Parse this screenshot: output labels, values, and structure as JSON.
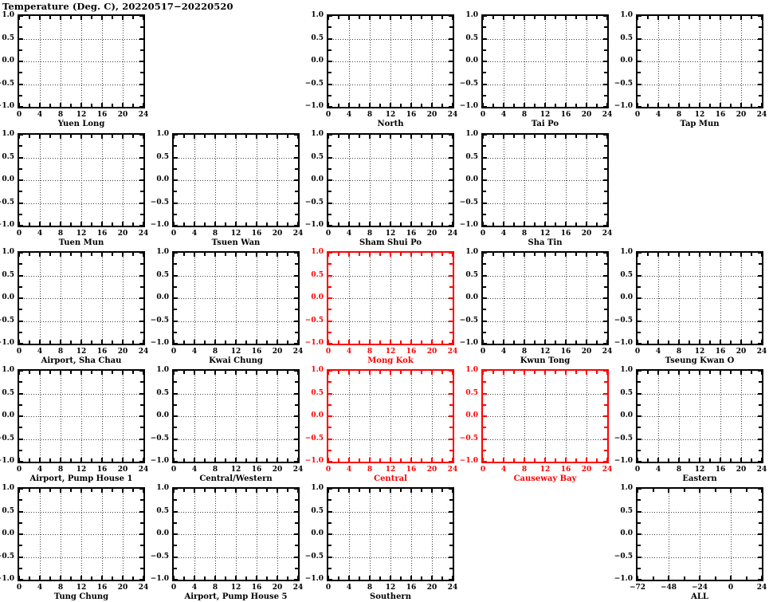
{
  "colors": {
    "axis_black": "#000000",
    "axis_red": "#ff0000",
    "grid": "#3f3f3f",
    "background": "#ffffff"
  },
  "chart_data": {
    "type": "line",
    "title": "Temperature (Deg. C), 20220517−20220520",
    "layout": {
      "rows": 5,
      "cols": 5,
      "grid_on": true,
      "legend": "none",
      "note": "5x5 small-multiples grid of empty axes; no data series plotted in any panel",
      "empty_cells": [
        {
          "row": 1,
          "col": 2
        },
        {
          "row": 2,
          "col": 5
        },
        {
          "row": 5,
          "col": 4
        }
      ]
    },
    "default_axes": {
      "xlim": [
        0,
        24
      ],
      "xticks": [
        0,
        4,
        8,
        12,
        16,
        20,
        24
      ],
      "xtick_labels": [
        "0",
        "4",
        "8",
        "12",
        "16",
        "20",
        "24"
      ],
      "xticks_minor": [
        2,
        6,
        10,
        14,
        18,
        22
      ],
      "x_gridlines": [
        4,
        8,
        12,
        16,
        20
      ],
      "ylim": [
        -1.0,
        1.0
      ],
      "yticks": [
        1.0,
        0.5,
        0.0,
        -0.5,
        -1.0
      ],
      "ytick_labels": [
        "1.0",
        "0.5",
        "0.0",
        "−0.5",
        "−1.0"
      ],
      "yticks_minor": [
        0.75,
        0.25,
        -0.25,
        -0.75
      ],
      "y_gridlines": [
        0.5,
        0.0,
        -0.5
      ]
    },
    "all_panel_axes": {
      "xlim": [
        -72,
        24
      ],
      "xticks": [
        -72,
        -48,
        -24,
        0,
        24
      ],
      "xtick_labels": [
        "−72",
        "−48",
        "−24",
        "0",
        "24"
      ],
      "xticks_minor": [
        -60,
        -36,
        -12,
        12
      ],
      "x_gridlines": [
        -48,
        -24,
        0
      ],
      "ylim": [
        -1.0,
        1.0
      ],
      "yticks": [
        1.0,
        0.5,
        0.0,
        -0.5,
        -1.0
      ],
      "ytick_labels": [
        "1.0",
        "0.5",
        "0.0",
        "−0.5",
        "−1.0"
      ],
      "yticks_minor": [
        0.75,
        0.25,
        -0.25,
        -0.75
      ],
      "y_gridlines": [
        0.5,
        0.0,
        -0.5
      ]
    },
    "panels": [
      {
        "title": "Yuen Long",
        "row": 1,
        "col": 1,
        "color": "black",
        "axes": "default",
        "series": []
      },
      {
        "title": "North",
        "row": 1,
        "col": 3,
        "color": "black",
        "axes": "default",
        "series": []
      },
      {
        "title": "Tai Po",
        "row": 1,
        "col": 4,
        "color": "black",
        "axes": "default",
        "series": []
      },
      {
        "title": "Tap Mun",
        "row": 1,
        "col": 5,
        "color": "black",
        "axes": "default",
        "series": []
      },
      {
        "title": "Tuen Mun",
        "row": 2,
        "col": 1,
        "color": "black",
        "axes": "default",
        "series": []
      },
      {
        "title": "Tsuen Wan",
        "row": 2,
        "col": 2,
        "color": "black",
        "axes": "default",
        "series": []
      },
      {
        "title": "Sham Shui Po",
        "row": 2,
        "col": 3,
        "color": "black",
        "axes": "default",
        "series": []
      },
      {
        "title": "Sha Tin",
        "row": 2,
        "col": 4,
        "color": "black",
        "axes": "default",
        "series": []
      },
      {
        "title": "Airport, Sha Chau",
        "row": 3,
        "col": 1,
        "color": "black",
        "axes": "default",
        "series": []
      },
      {
        "title": "Kwai Chung",
        "row": 3,
        "col": 2,
        "color": "black",
        "axes": "default",
        "series": []
      },
      {
        "title": "Mong Kok",
        "row": 3,
        "col": 3,
        "color": "red",
        "axes": "default",
        "series": []
      },
      {
        "title": "Kwun Tong",
        "row": 3,
        "col": 4,
        "color": "black",
        "axes": "default",
        "series": []
      },
      {
        "title": "Tseung Kwan O",
        "row": 3,
        "col": 5,
        "color": "black",
        "axes": "default",
        "series": []
      },
      {
        "title": "Airport, Pump House 1",
        "row": 4,
        "col": 1,
        "color": "black",
        "axes": "default",
        "series": []
      },
      {
        "title": "Central/Western",
        "row": 4,
        "col": 2,
        "color": "black",
        "axes": "default",
        "series": []
      },
      {
        "title": "Central",
        "row": 4,
        "col": 3,
        "color": "red",
        "axes": "default",
        "series": []
      },
      {
        "title": "Causeway Bay",
        "row": 4,
        "col": 4,
        "color": "red",
        "axes": "default",
        "series": []
      },
      {
        "title": "Eastern",
        "row": 4,
        "col": 5,
        "color": "black",
        "axes": "default",
        "series": []
      },
      {
        "title": "Tung Chung",
        "row": 5,
        "col": 1,
        "color": "black",
        "axes": "default",
        "series": []
      },
      {
        "title": "Airport, Pump House 5",
        "row": 5,
        "col": 2,
        "color": "black",
        "axes": "default",
        "series": []
      },
      {
        "title": "Southern",
        "row": 5,
        "col": 3,
        "color": "black",
        "axes": "default",
        "series": []
      },
      {
        "title": "ALL",
        "row": 5,
        "col": 5,
        "color": "black",
        "axes": "all",
        "series": []
      }
    ]
  }
}
